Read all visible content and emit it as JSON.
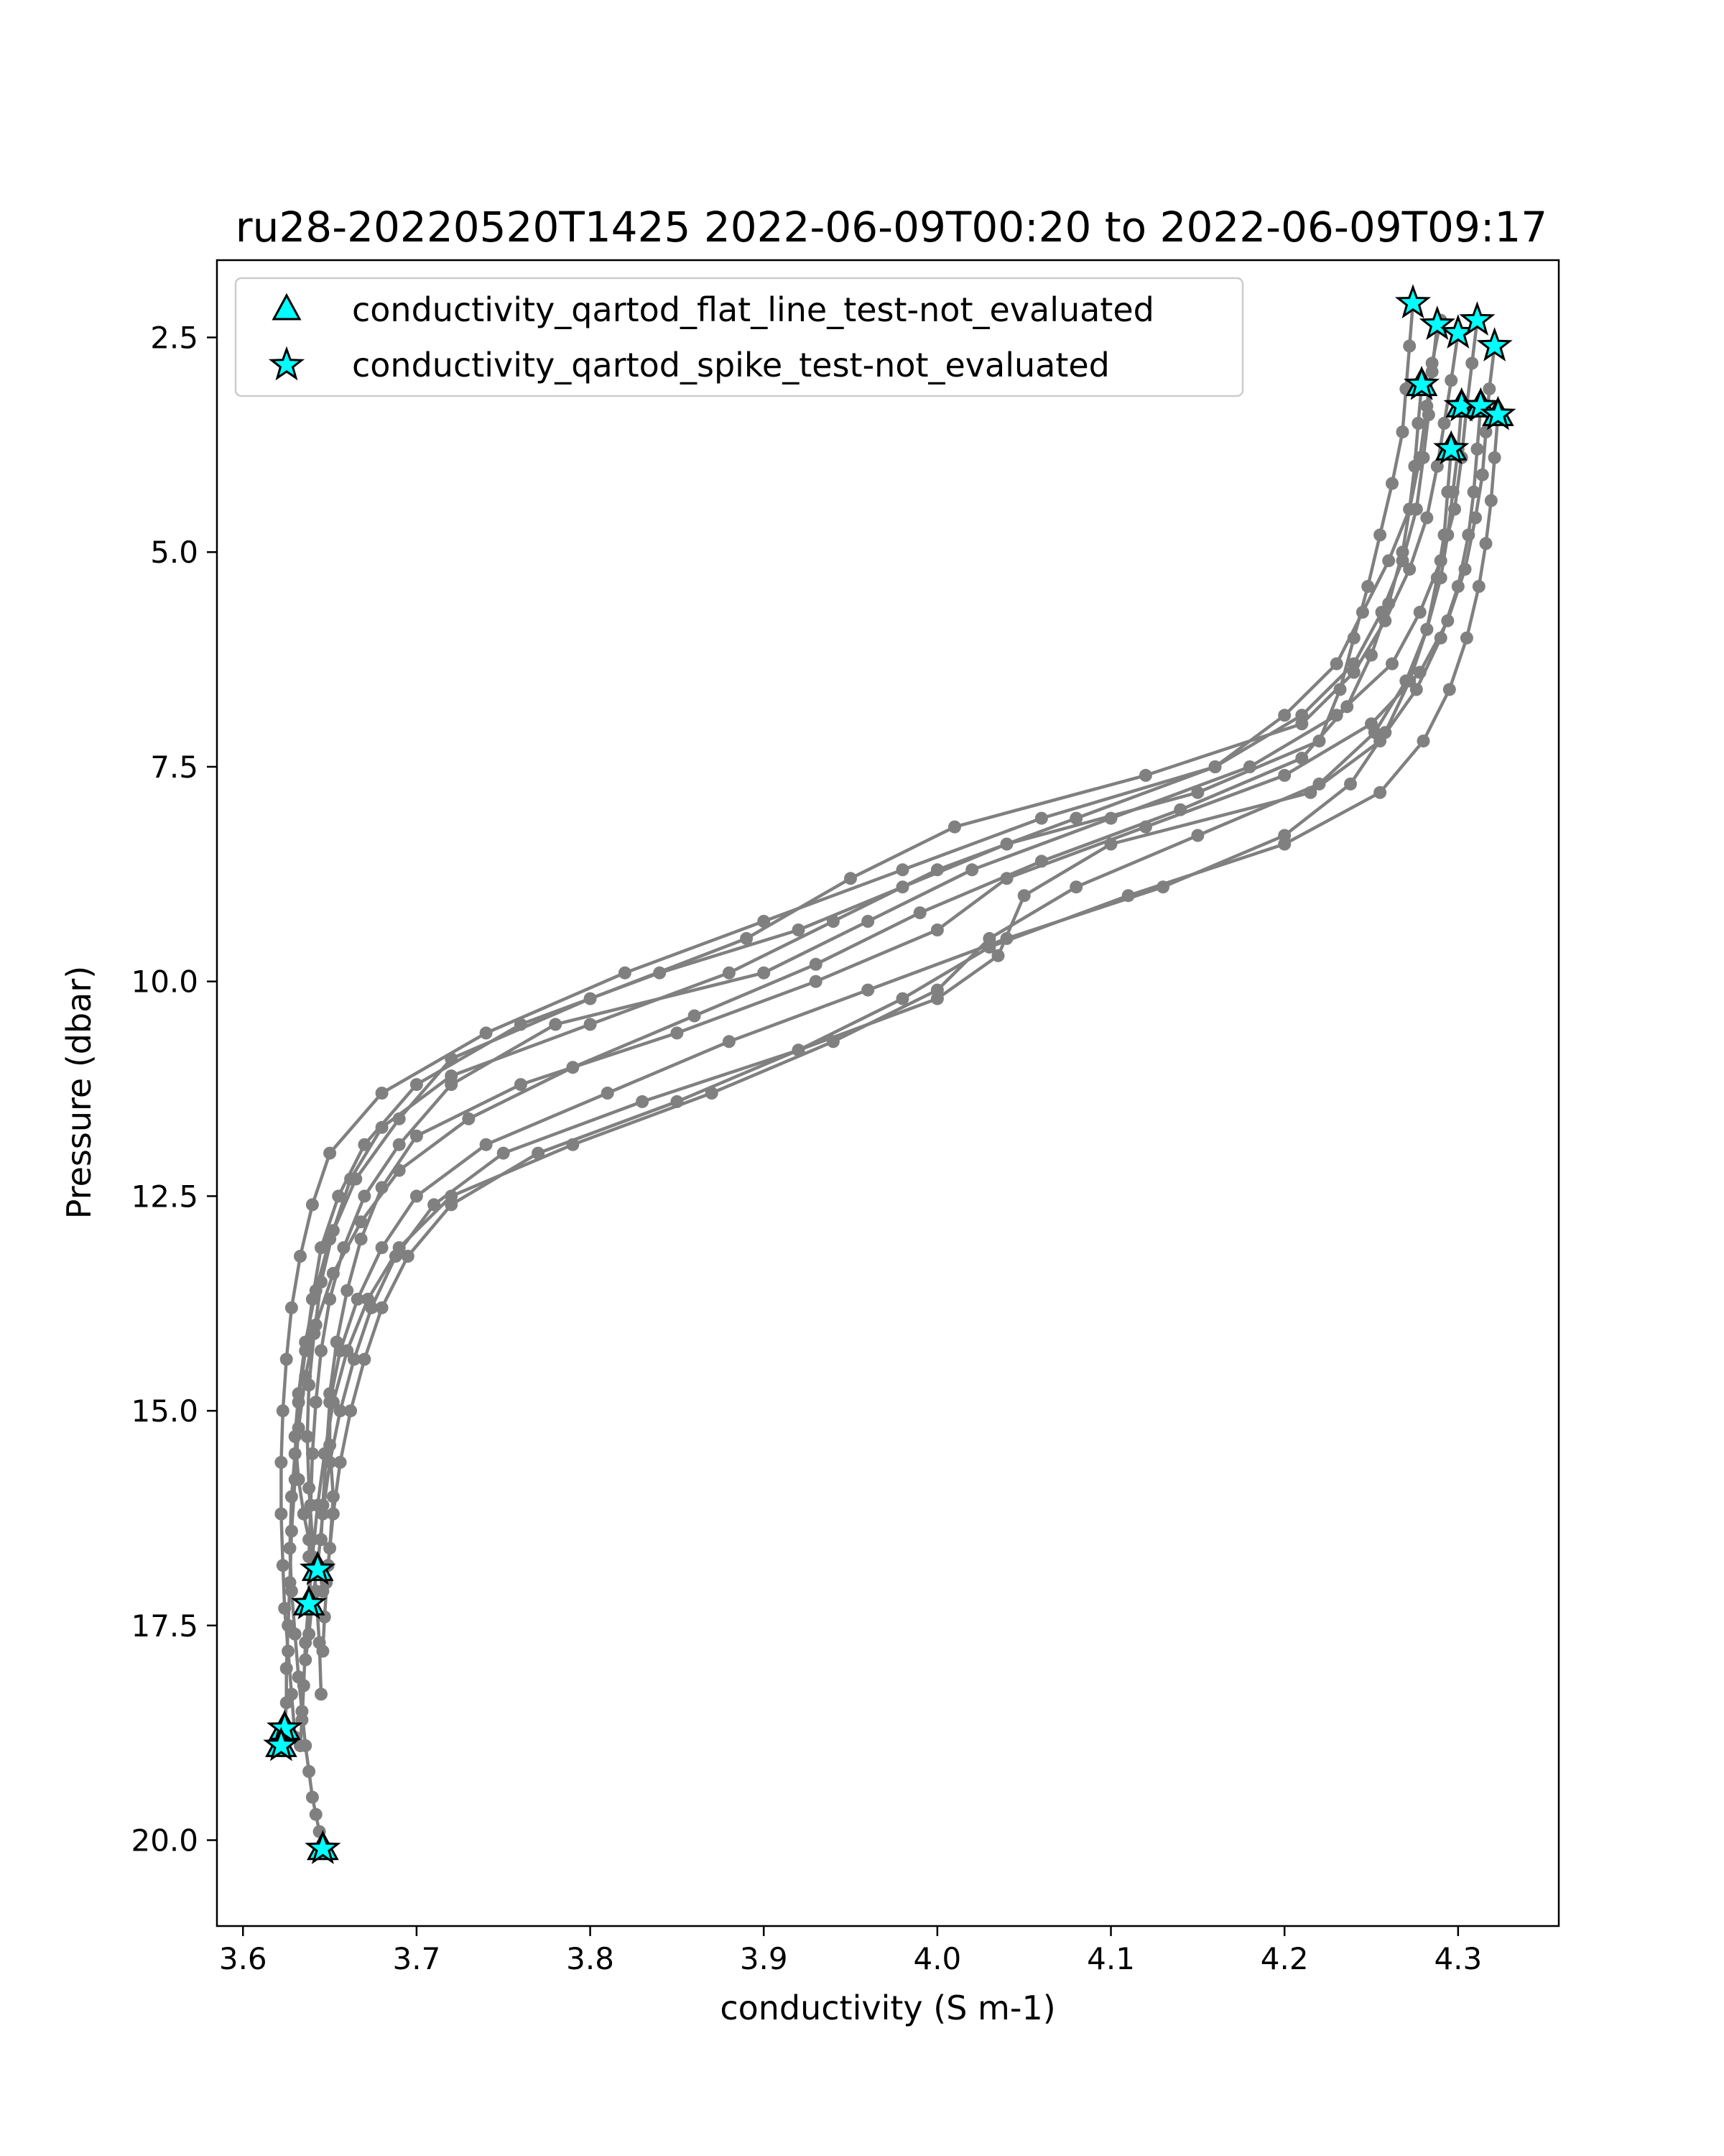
{
  "chart_data": {
    "type": "line",
    "title": "ru28-20220520T1425 2022-06-09T00:20 to 2022-06-09T09:17",
    "xlabel": "conductivity (S m-1)",
    "ylabel": "Pressure (dbar)",
    "xlim": [
      3.585,
      4.358
    ],
    "ylim": [
      21.0,
      1.6
    ],
    "y_inverted": true,
    "grid": false,
    "xticks": [
      3.6,
      3.7,
      3.8,
      3.9,
      4.0,
      4.1,
      4.2,
      4.3
    ],
    "xtick_labels": [
      "3.6",
      "3.7",
      "3.8",
      "3.9",
      "4.0",
      "4.1",
      "4.2",
      "4.3"
    ],
    "yticks": [
      2.5,
      5.0,
      7.5,
      10.0,
      12.5,
      15.0,
      17.5,
      20.0
    ],
    "ytick_labels": [
      "2.5",
      "5.0",
      "7.5",
      "10.0",
      "12.5",
      "15.0",
      "17.5",
      "20.0"
    ],
    "line_color": "#808080",
    "marker_color": "#00ffff",
    "legend_position": "upper-left",
    "legend": [
      {
        "label": "conductivity_qartod_flat_line_test-not_evaluated",
        "marker": "triangle"
      },
      {
        "label": "conductivity_qartod_spike_test-not_evaluated",
        "marker": "star"
      }
    ],
    "series": [
      {
        "x": [
          4.274,
          4.272,
          4.27,
          4.268,
          4.262,
          4.255,
          4.248,
          4.24,
          4.232,
          4.22,
          4.15,
          4.04,
          3.98,
          3.92,
          3.84,
          3.76,
          3.7,
          3.67,
          3.655,
          3.645,
          3.64,
          3.636,
          3.632,
          3.63,
          3.628,
          3.627,
          3.628,
          3.63,
          3.632,
          3.634,
          3.636,
          3.638,
          3.64,
          3.642,
          3.644,
          3.646
        ],
        "y": [
          2.1,
          2.6,
          3.1,
          3.6,
          4.2,
          4.8,
          5.4,
          6.0,
          6.6,
          7.2,
          7.8,
          8.4,
          8.9,
          9.4,
          9.9,
          10.5,
          11.2,
          11.9,
          12.5,
          13.1,
          13.7,
          14.3,
          14.9,
          15.5,
          16.0,
          16.6,
          17.1,
          17.6,
          18.1,
          18.5,
          18.9,
          19.2,
          19.5,
          19.7,
          19.9,
          20.1
        ]
      },
      {
        "x": [
          4.29,
          4.285,
          4.282,
          4.278,
          4.272,
          4.26,
          4.245,
          4.23,
          4.2,
          4.16,
          4.06,
          3.98,
          3.9,
          3.82,
          3.74,
          3.68,
          3.65,
          3.64,
          3.633,
          3.628,
          3.625,
          3.623,
          3.622,
          3.622,
          3.623,
          3.624,
          3.626,
          3.628,
          3.63
        ],
        "y": [
          2.3,
          2.8,
          3.3,
          3.9,
          4.5,
          5.1,
          5.7,
          6.3,
          6.9,
          7.5,
          8.1,
          8.7,
          9.3,
          9.9,
          10.6,
          11.3,
          12.0,
          12.6,
          13.2,
          13.8,
          14.4,
          15.0,
          15.6,
          16.2,
          16.8,
          17.3,
          17.8,
          18.3,
          18.8
        ]
      },
      {
        "x": [
          4.3,
          4.296,
          4.292,
          4.288,
          4.282,
          4.272,
          4.258,
          4.24,
          4.21,
          4.12,
          4.01,
          3.95,
          3.89,
          3.8,
          3.72,
          3.69,
          3.665,
          3.65,
          3.642,
          3.636,
          3.632,
          3.63,
          3.632,
          3.635,
          3.638,
          3.64,
          3.642,
          3.643
        ],
        "y": [
          2.45,
          3.0,
          3.5,
          4.0,
          4.6,
          5.2,
          5.8,
          6.4,
          7.0,
          7.6,
          8.2,
          8.8,
          9.5,
          10.2,
          10.9,
          11.6,
          12.3,
          13.0,
          13.6,
          14.2,
          14.8,
          15.3,
          15.8,
          16.2,
          16.5,
          16.7,
          16.8,
          16.85
        ]
      },
      {
        "x": [
          4.311,
          4.308,
          4.305,
          4.302,
          4.298,
          4.29,
          4.278,
          4.262,
          4.23,
          4.18,
          4.1,
          4.02,
          3.96,
          3.9,
          3.78,
          3.72,
          3.69,
          3.67,
          3.658,
          3.65,
          3.645,
          3.642,
          3.64,
          3.639,
          3.638,
          3.638
        ],
        "y": [
          2.3,
          2.8,
          3.3,
          3.9,
          4.5,
          5.1,
          5.7,
          6.3,
          6.9,
          7.5,
          8.1,
          8.7,
          9.3,
          9.9,
          10.5,
          11.2,
          11.9,
          12.5,
          13.1,
          13.7,
          14.3,
          14.9,
          15.5,
          16.1,
          16.7,
          17.25
        ]
      },
      {
        "x": [
          4.321,
          4.318,
          4.316,
          4.314,
          4.31,
          4.304,
          4.294,
          4.278,
          4.25,
          4.2,
          4.12,
          4.04,
          4.0,
          3.93,
          3.85,
          3.76,
          3.7,
          3.68,
          3.668,
          3.66,
          3.654,
          3.65,
          3.65,
          3.652,
          3.65,
          3.648,
          3.646
        ],
        "y": [
          2.6,
          3.1,
          3.6,
          4.1,
          4.6,
          5.2,
          5.8,
          6.4,
          7.0,
          7.6,
          8.2,
          8.8,
          9.4,
          10.0,
          10.6,
          11.2,
          11.8,
          12.4,
          13.0,
          13.6,
          14.2,
          14.8,
          15.4,
          16.0,
          16.6,
          17.0,
          17.1
        ]
      },
      {
        "x": [
          4.279,
          4.277,
          4.275,
          4.272,
          4.268,
          4.26,
          4.25,
          4.236,
          4.21,
          4.14,
          4.06,
          3.99,
          3.93,
          3.86,
          3.79,
          3.73,
          3.69,
          3.668,
          3.652,
          3.642,
          3.636,
          3.632,
          3.63,
          3.628,
          3.627,
          3.626,
          3.625,
          3.625,
          3.624
        ],
        "y": [
          3.05,
          3.5,
          4.0,
          4.5,
          5.0,
          5.6,
          6.2,
          6.8,
          7.4,
          8.0,
          8.6,
          9.2,
          9.8,
          10.4,
          11.0,
          11.6,
          12.2,
          12.8,
          13.4,
          14.0,
          14.6,
          15.2,
          15.8,
          16.4,
          17.0,
          17.5,
          18.0,
          18.4,
          18.7
        ]
      },
      {
        "x": [
          4.302,
          4.3,
          4.297,
          4.294,
          4.29,
          4.282,
          4.27,
          4.252,
          4.22,
          4.15,
          4.08,
          4.03,
          4.0,
          3.94,
          3.87,
          3.79,
          3.72,
          3.69,
          3.672,
          3.66,
          3.652,
          3.647,
          3.643,
          3.64,
          3.638,
          3.636,
          3.635,
          3.634,
          3.633
        ],
        "y": [
          3.3,
          3.8,
          4.3,
          4.8,
          5.3,
          5.9,
          6.5,
          7.1,
          7.7,
          8.3,
          8.9,
          9.5,
          10.1,
          10.7,
          11.3,
          11.9,
          12.5,
          13.1,
          13.7,
          14.3,
          14.9,
          15.5,
          16.1,
          16.7,
          17.2,
          17.7,
          18.2,
          18.6,
          18.9
        ]
      },
      {
        "x": [
          4.313,
          4.311,
          4.309,
          4.306,
          4.3,
          4.29,
          4.276,
          4.255,
          4.215,
          4.1,
          4.05,
          4.035,
          4.0,
          3.92,
          3.83,
          3.75,
          3.71,
          3.688,
          3.674,
          3.664,
          3.656,
          3.65,
          3.646,
          3.643,
          3.64,
          3.638,
          3.636
        ],
        "y": [
          3.3,
          3.8,
          4.3,
          4.8,
          5.4,
          6.0,
          6.6,
          7.2,
          7.8,
          8.4,
          9.0,
          9.7,
          10.2,
          10.8,
          11.4,
          12.0,
          12.6,
          13.2,
          13.8,
          14.4,
          15.0,
          15.6,
          16.2,
          16.8,
          17.2,
          17.6,
          17.9
        ]
      },
      {
        "x": [
          4.323,
          4.321,
          4.319,
          4.316,
          4.312,
          4.305,
          4.295,
          4.28,
          4.255,
          4.2,
          4.11,
          4.03,
          3.98,
          3.92,
          3.85,
          3.77,
          3.72,
          3.695,
          3.68,
          3.67,
          3.662,
          3.656,
          3.652,
          3.649,
          3.647,
          3.646
        ],
        "y": [
          3.4,
          3.9,
          4.4,
          4.9,
          5.4,
          6.0,
          6.6,
          7.2,
          7.8,
          8.4,
          9.0,
          9.6,
          10.2,
          10.8,
          11.4,
          12.0,
          12.6,
          13.2,
          13.8,
          14.4,
          15.0,
          15.6,
          16.2,
          16.8,
          17.4,
          17.8
        ]
      },
      {
        "x": [
          4.296,
          4.294,
          4.292,
          4.288,
          4.282,
          4.272,
          4.258,
          4.238,
          4.2,
          4.13,
          4.04,
          3.96,
          3.88,
          3.81,
          3.74,
          3.7,
          3.68,
          3.666,
          3.656,
          3.65,
          3.648,
          3.646,
          3.645
        ],
        "y": [
          3.8,
          4.3,
          4.8,
          5.3,
          5.9,
          6.5,
          7.1,
          7.7,
          8.3,
          8.9,
          9.5,
          10.1,
          10.7,
          11.3,
          11.9,
          12.5,
          13.1,
          13.7,
          14.3,
          14.9,
          15.5,
          16.1,
          16.5
        ]
      },
      {
        "x": [
          4.288,
          4.285,
          4.283,
          4.28,
          4.276,
          4.268,
          4.256,
          4.24,
          4.21,
          4.16,
          4.08,
          4.0,
          3.94,
          3.88,
          3.8,
          3.72,
          3.68,
          3.662,
          3.652,
          3.645,
          3.641,
          3.638,
          3.637,
          3.638,
          3.64,
          3.642,
          3.644,
          3.645
        ],
        "y": [
          2.35,
          2.9,
          3.4,
          3.9,
          4.5,
          5.1,
          5.7,
          6.3,
          6.9,
          7.5,
          8.1,
          8.7,
          9.3,
          9.9,
          10.5,
          11.1,
          11.7,
          12.3,
          12.9,
          13.5,
          14.1,
          14.7,
          15.3,
          15.9,
          16.5,
          17.1,
          17.7,
          18.3
        ]
      }
    ],
    "flagged_points": [
      {
        "x": 4.274,
        "y": 2.1,
        "markers": [
          "star"
        ]
      },
      {
        "x": 4.288,
        "y": 2.35,
        "markers": [
          "star"
        ]
      },
      {
        "x": 4.3,
        "y": 2.45,
        "markers": [
          "star"
        ]
      },
      {
        "x": 4.311,
        "y": 2.3,
        "markers": [
          "star"
        ]
      },
      {
        "x": 4.321,
        "y": 2.6,
        "markers": [
          "star"
        ]
      },
      {
        "x": 4.279,
        "y": 3.05,
        "markers": [
          "triangle",
          "star"
        ]
      },
      {
        "x": 4.302,
        "y": 3.3,
        "markers": [
          "triangle",
          "star"
        ]
      },
      {
        "x": 4.313,
        "y": 3.3,
        "markers": [
          "triangle",
          "star"
        ]
      },
      {
        "x": 4.323,
        "y": 3.4,
        "markers": [
          "triangle",
          "star"
        ]
      },
      {
        "x": 4.296,
        "y": 3.8,
        "markers": [
          "triangle",
          "star"
        ]
      },
      {
        "x": 3.643,
        "y": 16.85,
        "markers": [
          "triangle",
          "star"
        ]
      },
      {
        "x": 3.638,
        "y": 17.25,
        "markers": [
          "triangle",
          "star"
        ]
      },
      {
        "x": 3.624,
        "y": 18.7,
        "markers": [
          "triangle",
          "star"
        ]
      },
      {
        "x": 3.622,
        "y": 18.9,
        "markers": [
          "triangle",
          "star"
        ]
      },
      {
        "x": 3.646,
        "y": 20.1,
        "markers": [
          "triangle",
          "star"
        ]
      }
    ]
  }
}
